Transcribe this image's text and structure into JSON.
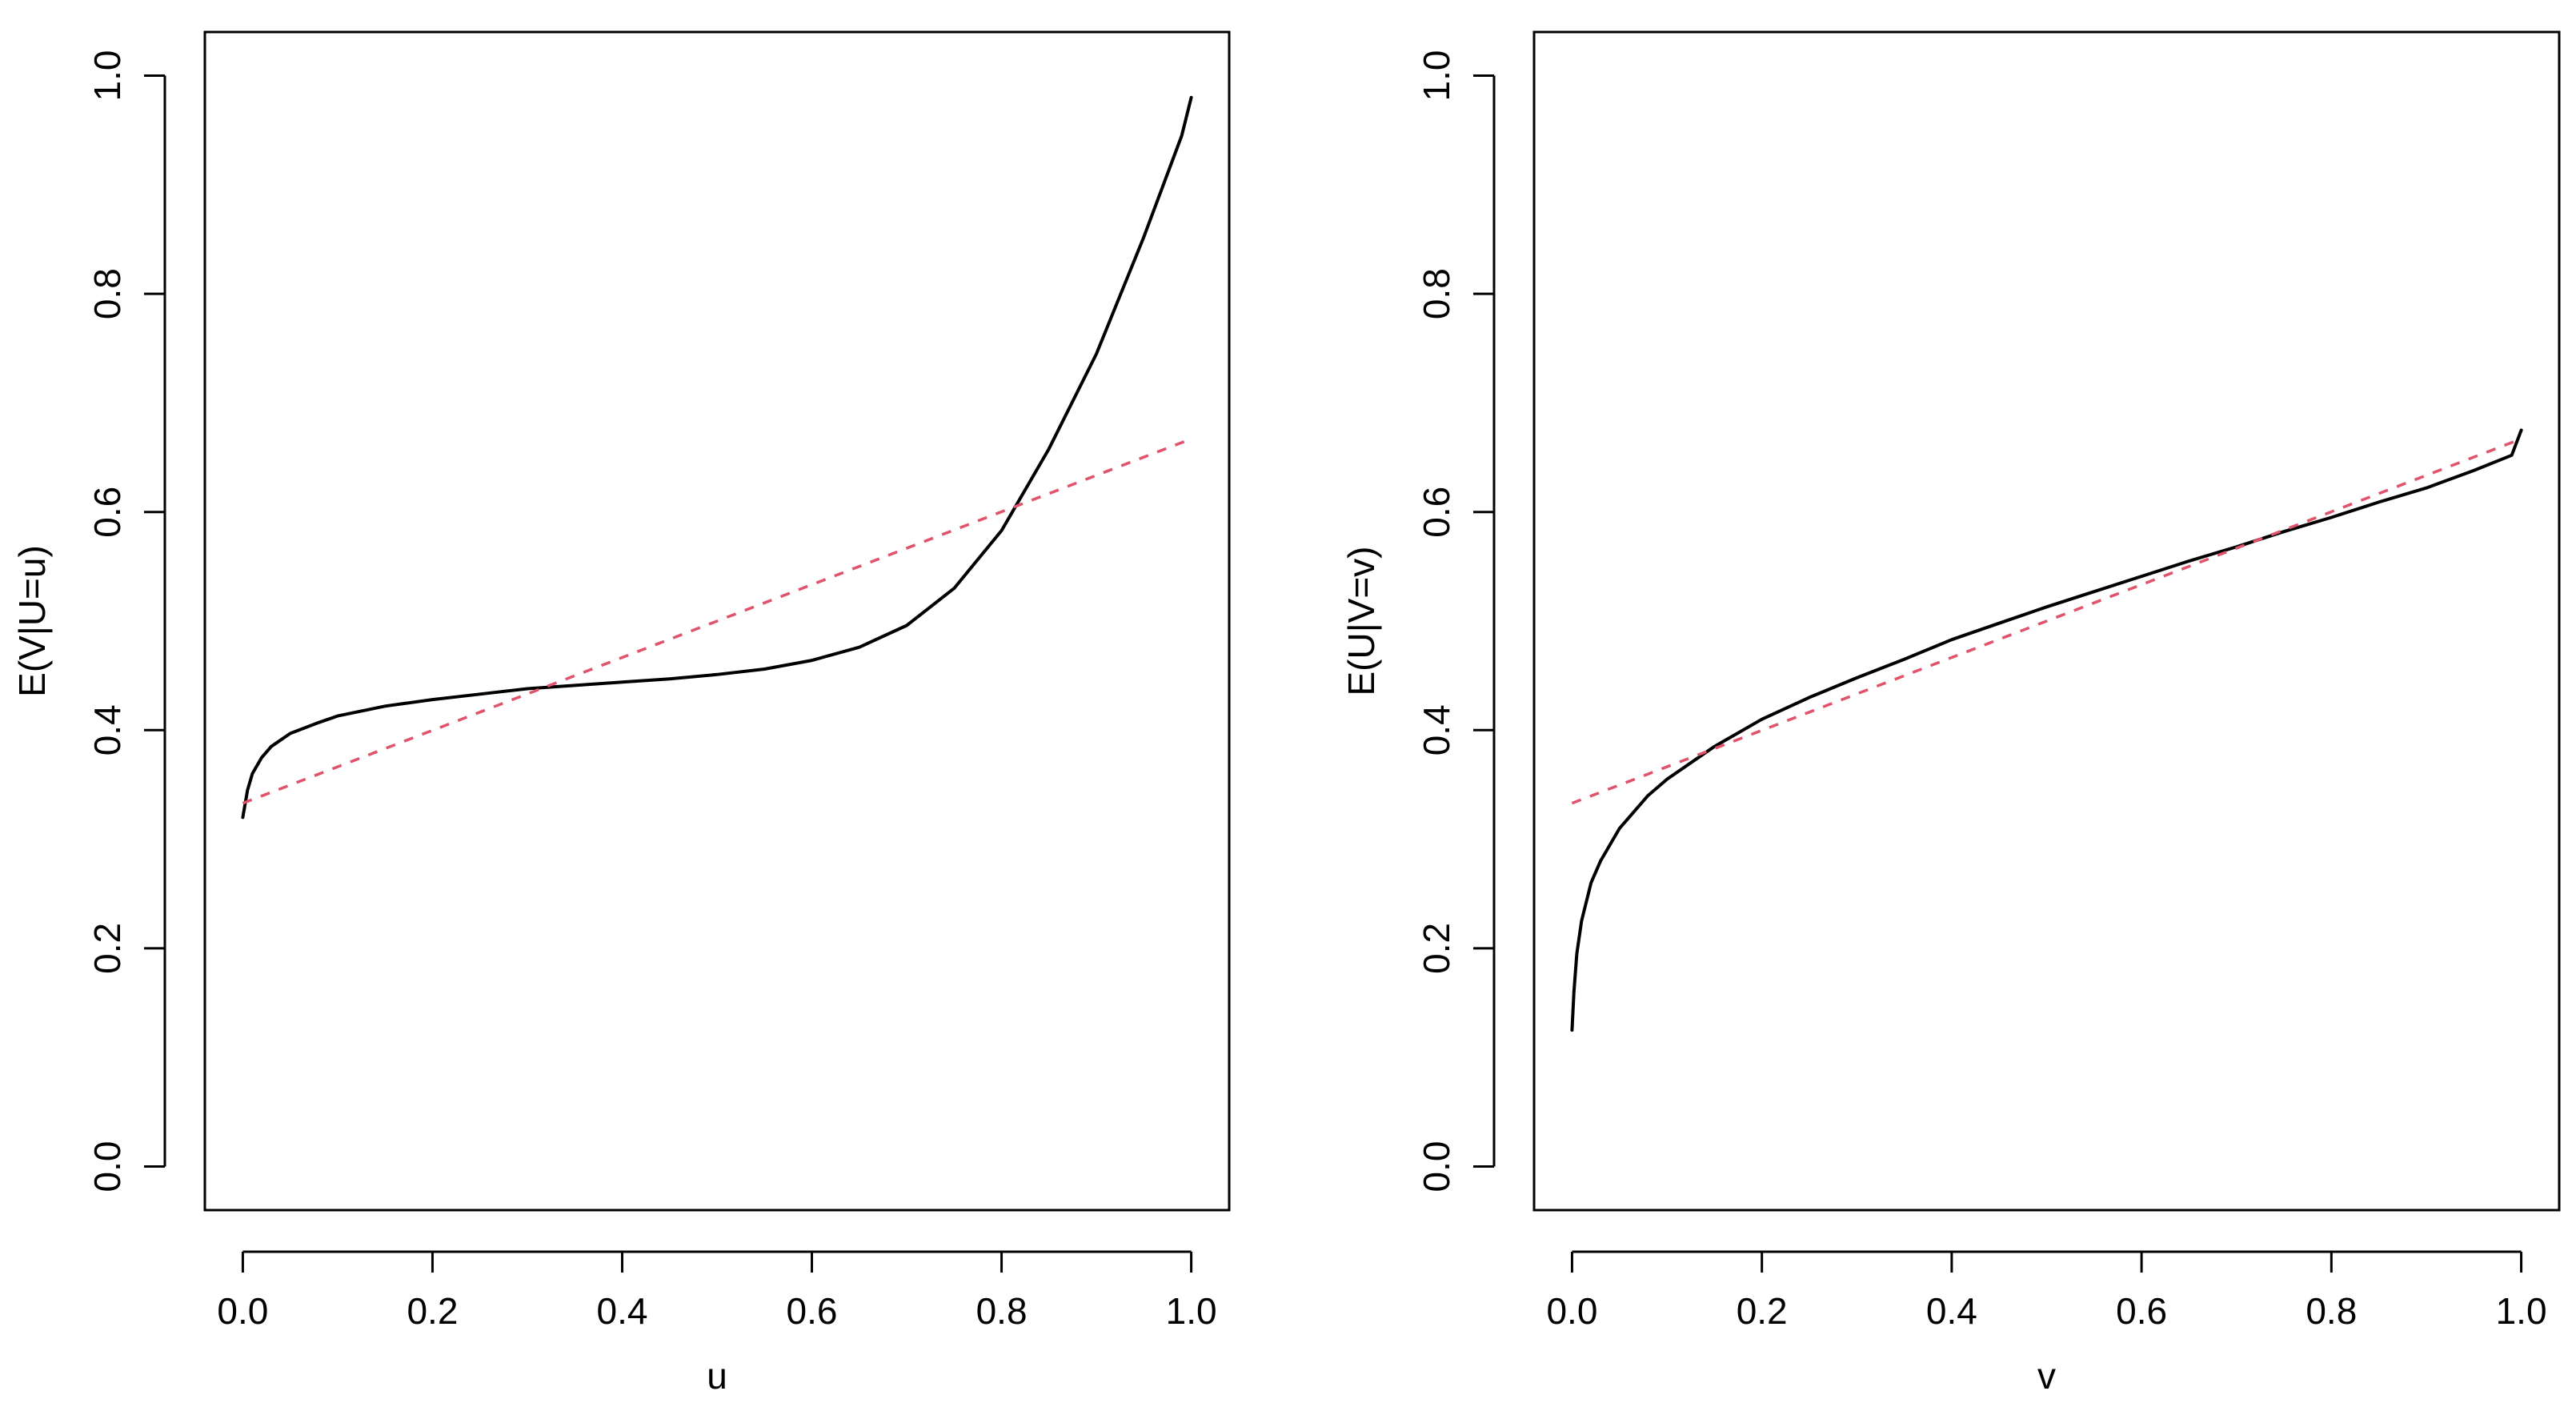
{
  "chart_data": [
    {
      "type": "line",
      "title": "",
      "xlabel": "u",
      "ylabel": "E(V|U=u)",
      "xlim": [
        -0.04,
        1.04
      ],
      "ylim": [
        -0.04,
        1.04
      ],
      "xticks": [
        "0.0",
        "0.2",
        "0.4",
        "0.6",
        "0.8",
        "1.0"
      ],
      "yticks": [
        "0.0",
        "0.2",
        "0.4",
        "0.6",
        "0.8",
        "1.0"
      ],
      "grid": false,
      "legend": "none",
      "series": [
        {
          "style": "solid",
          "color": "#000000",
          "x": [
            0.0,
            0.005,
            0.01,
            0.02,
            0.03,
            0.05,
            0.08,
            0.1,
            0.15,
            0.2,
            0.25,
            0.3,
            0.35,
            0.4,
            0.45,
            0.5,
            0.55,
            0.6,
            0.65,
            0.7,
            0.75,
            0.8,
            0.85,
            0.9,
            0.95,
            0.99,
            1.0
          ],
          "y": [
            0.32,
            0.345,
            0.36,
            0.375,
            0.385,
            0.397,
            0.407,
            0.413,
            0.422,
            0.428,
            0.433,
            0.438,
            0.441,
            0.444,
            0.447,
            0.451,
            0.456,
            0.464,
            0.476,
            0.496,
            0.53,
            0.583,
            0.658,
            0.745,
            0.852,
            0.945,
            0.98
          ]
        },
        {
          "style": "dashed",
          "color": "#DF536B",
          "x": [
            0.0,
            1.0
          ],
          "y": [
            0.333,
            0.667
          ]
        }
      ]
    },
    {
      "type": "line",
      "title": "",
      "xlabel": "v",
      "ylabel": "E(U|V=v)",
      "xlim": [
        -0.04,
        1.04
      ],
      "ylim": [
        -0.04,
        1.04
      ],
      "xticks": [
        "0.0",
        "0.2",
        "0.4",
        "0.6",
        "0.8",
        "1.0"
      ],
      "yticks": [
        "0.0",
        "0.2",
        "0.4",
        "0.6",
        "0.8",
        "1.0"
      ],
      "grid": false,
      "legend": "none",
      "series": [
        {
          "style": "solid",
          "color": "#000000",
          "x": [
            0.0,
            0.002,
            0.005,
            0.01,
            0.02,
            0.03,
            0.05,
            0.08,
            0.1,
            0.15,
            0.2,
            0.25,
            0.3,
            0.35,
            0.4,
            0.45,
            0.5,
            0.55,
            0.6,
            0.65,
            0.7,
            0.75,
            0.8,
            0.85,
            0.9,
            0.95,
            0.99,
            1.0
          ],
          "y": [
            0.125,
            0.16,
            0.195,
            0.225,
            0.26,
            0.28,
            0.31,
            0.34,
            0.355,
            0.385,
            0.41,
            0.43,
            0.448,
            0.465,
            0.483,
            0.498,
            0.513,
            0.527,
            0.541,
            0.555,
            0.568,
            0.582,
            0.595,
            0.609,
            0.622,
            0.638,
            0.652,
            0.675
          ]
        },
        {
          "style": "dashed",
          "color": "#DF536B",
          "x": [
            0.0,
            1.0
          ],
          "y": [
            0.333,
            0.667
          ]
        }
      ]
    }
  ]
}
